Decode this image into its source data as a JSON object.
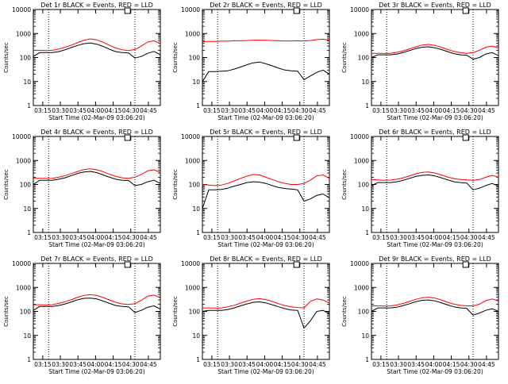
{
  "figure": {
    "y_label": "Counts/sec",
    "x_label": "Start Time (02-Mar-09 03:06:20)"
  },
  "chart_data": [
    {
      "type": "line",
      "title": "Det 1r BLACK = Events, RED = LLD",
      "xlabel": "Start Time (02-Mar-09 03:06:20)",
      "ylabel": "Counts/sec",
      "yscale": "log",
      "ylim": [
        1,
        10000
      ],
      "y_tick_labels": [
        "1",
        "10",
        "100",
        "1000",
        "10000"
      ],
      "x_tick_labels": [
        "03:15",
        "03:30",
        "03:45",
        "04:00",
        "04:15",
        "04:30",
        "04:45"
      ],
      "x": [
        0,
        5,
        10,
        15,
        20,
        25,
        30,
        35,
        40,
        45,
        50,
        55,
        60,
        65,
        70,
        75,
        80,
        85,
        90,
        95,
        100
      ],
      "vlines": [
        12,
        80
      ],
      "series": [
        {
          "color": "#ff0000",
          "values": [
            200,
            200,
            195,
            200,
            225,
            270,
            330,
            420,
            530,
            600,
            540,
            430,
            320,
            250,
            210,
            195,
            215,
            300,
            440,
            500,
            380
          ]
        },
        {
          "color": "#000000",
          "values": [
            110,
            160,
            160,
            160,
            175,
            210,
            260,
            320,
            380,
            400,
            360,
            290,
            220,
            175,
            160,
            155,
            95,
            110,
            150,
            180,
            130
          ]
        }
      ]
    },
    {
      "type": "line",
      "title": "Det 2r BLACK = Events, RED = LLD",
      "xlabel": "Start Time (02-Mar-09 03:06:20)",
      "ylabel": "Counts/sec",
      "yscale": "log",
      "ylim": [
        1,
        10000
      ],
      "y_tick_labels": [
        "1",
        "10",
        "100",
        "1000",
        "10000"
      ],
      "x_tick_labels": [
        "03:15",
        "03:30",
        "03:45",
        "04:00",
        "04:15",
        "04:30",
        "04:45"
      ],
      "x": [
        0,
        5,
        10,
        15,
        20,
        25,
        30,
        35,
        40,
        45,
        50,
        55,
        60,
        65,
        70,
        75,
        80,
        85,
        90,
        95,
        100
      ],
      "vlines": [
        12,
        80
      ],
      "series": [
        {
          "color": "#ff0000",
          "values": [
            460,
            470,
            470,
            480,
            480,
            500,
            500,
            510,
            520,
            530,
            520,
            510,
            500,
            490,
            490,
            500,
            490,
            510,
            560,
            580,
            520
          ]
        },
        {
          "color": "#000000",
          "values": [
            10,
            26,
            26,
            27,
            28,
            33,
            40,
            50,
            60,
            65,
            55,
            45,
            36,
            30,
            28,
            27,
            12,
            17,
            24,
            30,
            20
          ]
        }
      ]
    },
    {
      "type": "line",
      "title": "Det 3r BLACK = Events, RED = LLD",
      "xlabel": "Start Time (02-Mar-09 03:06:20)",
      "ylabel": "Counts/sec",
      "yscale": "log",
      "ylim": [
        1,
        10000
      ],
      "y_tick_labels": [
        "1",
        "10",
        "100",
        "1000",
        "10000"
      ],
      "x_tick_labels": [
        "03:15",
        "03:30",
        "03:45",
        "04:00",
        "04:15",
        "04:30",
        "04:45"
      ],
      "x": [
        0,
        5,
        10,
        15,
        20,
        25,
        30,
        35,
        40,
        45,
        50,
        55,
        60,
        65,
        70,
        75,
        80,
        85,
        90,
        95,
        100
      ],
      "vlines": [
        12,
        80
      ],
      "series": [
        {
          "color": "#ff0000",
          "values": [
            150,
            150,
            148,
            150,
            165,
            190,
            230,
            280,
            330,
            350,
            320,
            270,
            215,
            180,
            160,
            150,
            160,
            200,
            270,
            300,
            250
          ]
        },
        {
          "color": "#000000",
          "values": [
            100,
            130,
            130,
            130,
            140,
            160,
            195,
            235,
            270,
            280,
            255,
            215,
            175,
            145,
            130,
            125,
            85,
            100,
            140,
            160,
            120
          ]
        }
      ]
    },
    {
      "type": "line",
      "title": "Det 4r BLACK = Events, RED = LLD",
      "xlabel": "Start Time (02-Mar-09 03:06:20)",
      "ylabel": "Counts/sec",
      "yscale": "log",
      "ylim": [
        1,
        10000
      ],
      "y_tick_labels": [
        "1",
        "10",
        "100",
        "1000",
        "10000"
      ],
      "x_tick_labels": [
        "03:15",
        "03:30",
        "03:45",
        "04:00",
        "04:15",
        "04:30",
        "04:45"
      ],
      "x": [
        0,
        5,
        10,
        15,
        20,
        25,
        30,
        35,
        40,
        45,
        50,
        55,
        60,
        65,
        70,
        75,
        80,
        85,
        90,
        95,
        100
      ],
      "vlines": [
        12,
        80
      ],
      "series": [
        {
          "color": "#ff0000",
          "values": [
            180,
            180,
            178,
            180,
            200,
            235,
            285,
            350,
            420,
            450,
            410,
            340,
            265,
            215,
            190,
            180,
            200,
            260,
            370,
            410,
            320
          ]
        },
        {
          "color": "#000000",
          "values": [
            100,
            150,
            150,
            150,
            165,
            190,
            235,
            290,
            330,
            350,
            310,
            250,
            200,
            165,
            150,
            145,
            90,
            100,
            130,
            150,
            110
          ]
        }
      ]
    },
    {
      "type": "line",
      "title": "Det 5r BLACK = Events, RED = LLD",
      "xlabel": "Start Time (02-Mar-09 03:06:20)",
      "ylabel": "Counts/sec",
      "yscale": "log",
      "ylim": [
        1,
        10000
      ],
      "y_tick_labels": [
        "1",
        "10",
        "100",
        "1000",
        "10000"
      ],
      "x_tick_labels": [
        "03:15",
        "03:30",
        "03:45",
        "04:00",
        "04:15",
        "04:30",
        "04:45"
      ],
      "x": [
        0,
        5,
        10,
        15,
        20,
        25,
        30,
        35,
        40,
        45,
        50,
        55,
        60,
        65,
        70,
        75,
        80,
        85,
        90,
        95,
        100
      ],
      "vlines": [
        12,
        80
      ],
      "series": [
        {
          "color": "#ff0000",
          "values": [
            100,
            95,
            90,
            95,
            110,
            140,
            180,
            220,
            260,
            250,
            200,
            160,
            130,
            110,
            100,
            100,
            110,
            150,
            230,
            250,
            180
          ]
        },
        {
          "color": "#000000",
          "values": [
            10,
            60,
            60,
            62,
            70,
            85,
            100,
            120,
            130,
            125,
            110,
            90,
            75,
            68,
            64,
            60,
            20,
            25,
            35,
            40,
            28
          ]
        }
      ]
    },
    {
      "type": "line",
      "title": "Det 6r BLACK = Events, RED = LLD",
      "xlabel": "Start Time (02-Mar-09 03:06:20)",
      "ylabel": "Counts/sec",
      "yscale": "log",
      "ylim": [
        1,
        10000
      ],
      "y_tick_labels": [
        "1",
        "10",
        "100",
        "1000",
        "10000"
      ],
      "x_tick_labels": [
        "03:15",
        "03:30",
        "03:45",
        "04:00",
        "04:15",
        "04:30",
        "04:45"
      ],
      "x": [
        0,
        5,
        10,
        15,
        20,
        25,
        30,
        35,
        40,
        45,
        50,
        55,
        60,
        65,
        70,
        75,
        80,
        85,
        90,
        95,
        100
      ],
      "vlines": [
        12,
        80
      ],
      "series": [
        {
          "color": "#ff0000",
          "values": [
            160,
            155,
            150,
            152,
            165,
            190,
            230,
            280,
            320,
            330,
            300,
            250,
            205,
            175,
            160,
            155,
            150,
            160,
            200,
            240,
            200
          ]
        },
        {
          "color": "#000000",
          "values": [
            90,
            120,
            120,
            120,
            130,
            150,
            180,
            215,
            240,
            250,
            225,
            190,
            155,
            130,
            120,
            115,
            60,
            70,
            90,
            110,
            85
          ]
        }
      ]
    },
    {
      "type": "line",
      "title": "Det 7r BLACK = Events, RED = LLD",
      "xlabel": "Start Time (02-Mar-09 03:06:20)",
      "ylabel": "Counts/sec",
      "yscale": "log",
      "ylim": [
        1,
        10000
      ],
      "y_tick_labels": [
        "1",
        "10",
        "100",
        "1000",
        "10000"
      ],
      "x_tick_labels": [
        "03:15",
        "03:30",
        "03:45",
        "04:00",
        "04:15",
        "04:30",
        "04:45"
      ],
      "x": [
        0,
        5,
        10,
        15,
        20,
        25,
        30,
        35,
        40,
        45,
        50,
        55,
        60,
        65,
        70,
        75,
        80,
        85,
        90,
        95,
        100
      ],
      "vlines": [
        12,
        80
      ],
      "series": [
        {
          "color": "#ff0000",
          "values": [
            190,
            190,
            185,
            190,
            215,
            255,
            310,
            390,
            470,
            500,
            460,
            380,
            300,
            240,
            205,
            195,
            210,
            290,
            430,
            480,
            370
          ]
        },
        {
          "color": "#000000",
          "values": [
            110,
            160,
            160,
            160,
            175,
            205,
            250,
            305,
            350,
            360,
            330,
            270,
            215,
            175,
            160,
            155,
            90,
            110,
            150,
            170,
            125
          ]
        }
      ]
    },
    {
      "type": "line",
      "title": "Det 8r BLACK = Events, RED = LLD",
      "xlabel": "Start Time (02-Mar-09 03:06:20)",
      "ylabel": "Counts/sec",
      "yscale": "log",
      "ylim": [
        1,
        10000
      ],
      "y_tick_labels": [
        "1",
        "10",
        "100",
        "1000",
        "10000"
      ],
      "x_tick_labels": [
        "03:15",
        "03:30",
        "03:45",
        "04:00",
        "04:15",
        "04:30",
        "04:45"
      ],
      "x": [
        0,
        5,
        10,
        15,
        20,
        25,
        30,
        35,
        40,
        45,
        50,
        55,
        60,
        65,
        70,
        75,
        80,
        85,
        90,
        95,
        100
      ],
      "vlines": [
        12,
        80
      ],
      "series": [
        {
          "color": "#ff0000",
          "values": [
            140,
            140,
            138,
            140,
            155,
            180,
            220,
            270,
            320,
            340,
            310,
            260,
            210,
            175,
            155,
            145,
            140,
            260,
            330,
            300,
            220
          ]
        },
        {
          "color": "#000000",
          "values": [
            100,
            110,
            110,
            110,
            120,
            140,
            170,
            205,
            240,
            250,
            225,
            190,
            155,
            130,
            115,
            110,
            20,
            40,
            100,
            110,
            80
          ]
        }
      ]
    },
    {
      "type": "line",
      "title": "Det 9r BLACK = Events, RED = LLD",
      "xlabel": "Start Time (02-Mar-09 03:06:20)",
      "ylabel": "Counts/sec",
      "yscale": "log",
      "ylim": [
        1,
        10000
      ],
      "y_tick_labels": [
        "1",
        "10",
        "100",
        "1000",
        "10000"
      ],
      "x_tick_labels": [
        "03:15",
        "03:30",
        "03:45",
        "04:00",
        "04:15",
        "04:30",
        "04:45"
      ],
      "x": [
        0,
        5,
        10,
        15,
        20,
        25,
        30,
        35,
        40,
        45,
        50,
        55,
        60,
        65,
        70,
        75,
        80,
        85,
        90,
        95,
        100
      ],
      "vlines": [
        12,
        80
      ],
      "series": [
        {
          "color": "#ff0000",
          "values": [
            170,
            170,
            168,
            170,
            185,
            215,
            260,
            320,
            370,
            390,
            360,
            300,
            240,
            200,
            180,
            170,
            170,
            200,
            280,
            330,
            270
          ]
        },
        {
          "color": "#000000",
          "values": [
            100,
            140,
            140,
            140,
            150,
            175,
            210,
            255,
            290,
            300,
            275,
            230,
            185,
            155,
            140,
            135,
            70,
            85,
            110,
            130,
            100
          ]
        }
      ]
    }
  ]
}
